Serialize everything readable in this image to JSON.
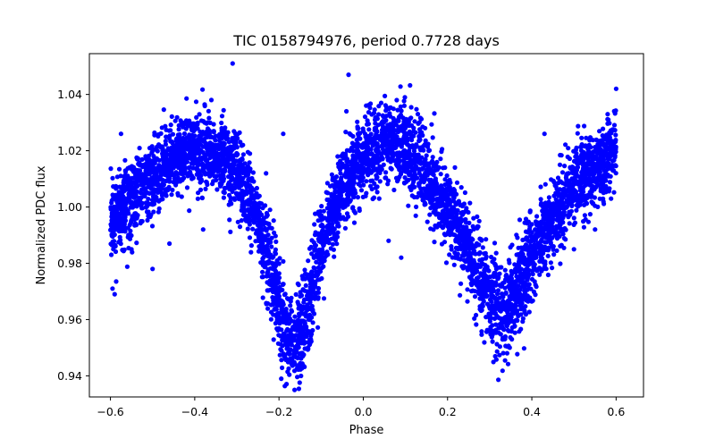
{
  "chart_data": {
    "type": "scatter",
    "title": "TIC 0158794976, period 0.7728 days",
    "xlabel": "Phase",
    "ylabel": "Normalized PDC flux",
    "xlim": [
      -0.65,
      0.665
    ],
    "ylim": [
      0.9325,
      1.0545
    ],
    "xticks": [
      -0.6,
      -0.4,
      -0.2,
      0.0,
      0.2,
      0.4,
      0.6
    ],
    "xtick_labels": [
      "−0.6",
      "−0.4",
      "−0.2",
      "0.0",
      "0.2",
      "0.4",
      "0.6"
    ],
    "yticks": [
      0.94,
      0.96,
      0.98,
      1.0,
      1.02,
      1.04
    ],
    "ytick_labels": [
      "0.94",
      "0.96",
      "0.98",
      "1.00",
      "1.02",
      "1.04"
    ],
    "grid": false,
    "marker_color": "#0000ff",
    "series": [
      {
        "envelope_points": [
          {
            "x": -0.6,
            "y": 0.995
          },
          {
            "x": -0.55,
            "y": 1.003
          },
          {
            "x": -0.5,
            "y": 1.01
          },
          {
            "x": -0.45,
            "y": 1.017
          },
          {
            "x": -0.4,
            "y": 1.021
          },
          {
            "x": -0.35,
            "y": 1.019
          },
          {
            "x": -0.3,
            "y": 1.012
          },
          {
            "x": -0.26,
            "y": 1.0
          },
          {
            "x": -0.22,
            "y": 0.978
          },
          {
            "x": -0.18,
            "y": 0.953
          },
          {
            "x": -0.165,
            "y": 0.949
          },
          {
            "x": -0.14,
            "y": 0.958
          },
          {
            "x": -0.1,
            "y": 0.985
          },
          {
            "x": -0.05,
            "y": 1.007
          },
          {
            "x": 0.0,
            "y": 1.018
          },
          {
            "x": 0.05,
            "y": 1.023
          },
          {
            "x": 0.1,
            "y": 1.021
          },
          {
            "x": 0.15,
            "y": 1.012
          },
          {
            "x": 0.2,
            "y": 1.0
          },
          {
            "x": 0.25,
            "y": 0.985
          },
          {
            "x": 0.3,
            "y": 0.967
          },
          {
            "x": 0.33,
            "y": 0.962
          },
          {
            "x": 0.36,
            "y": 0.968
          },
          {
            "x": 0.4,
            "y": 0.982
          },
          {
            "x": 0.45,
            "y": 0.997
          },
          {
            "x": 0.5,
            "y": 1.008
          },
          {
            "x": 0.55,
            "y": 1.014
          },
          {
            "x": 0.6,
            "y": 1.02
          }
        ],
        "outliers": [
          {
            "x": -0.31,
            "y": 1.051
          },
          {
            "x": -0.035,
            "y": 1.047
          },
          {
            "x": -0.59,
            "y": 0.969
          },
          {
            "x": -0.595,
            "y": 0.971
          },
          {
            "x": -0.55,
            "y": 0.985
          },
          {
            "x": -0.5,
            "y": 0.978
          },
          {
            "x": -0.46,
            "y": 0.987
          },
          {
            "x": -0.38,
            "y": 0.992
          },
          {
            "x": -0.19,
            "y": 1.026
          },
          {
            "x": 0.09,
            "y": 0.982
          },
          {
            "x": 0.06,
            "y": 0.988
          },
          {
            "x": -0.04,
            "y": 1.034
          },
          {
            "x": 0.5,
            "y": 0.985
          },
          {
            "x": 0.55,
            "y": 0.992
          },
          {
            "x": 0.6,
            "y": 1.042
          },
          {
            "x": -0.575,
            "y": 1.026
          },
          {
            "x": 0.43,
            "y": 1.026
          }
        ]
      }
    ]
  }
}
